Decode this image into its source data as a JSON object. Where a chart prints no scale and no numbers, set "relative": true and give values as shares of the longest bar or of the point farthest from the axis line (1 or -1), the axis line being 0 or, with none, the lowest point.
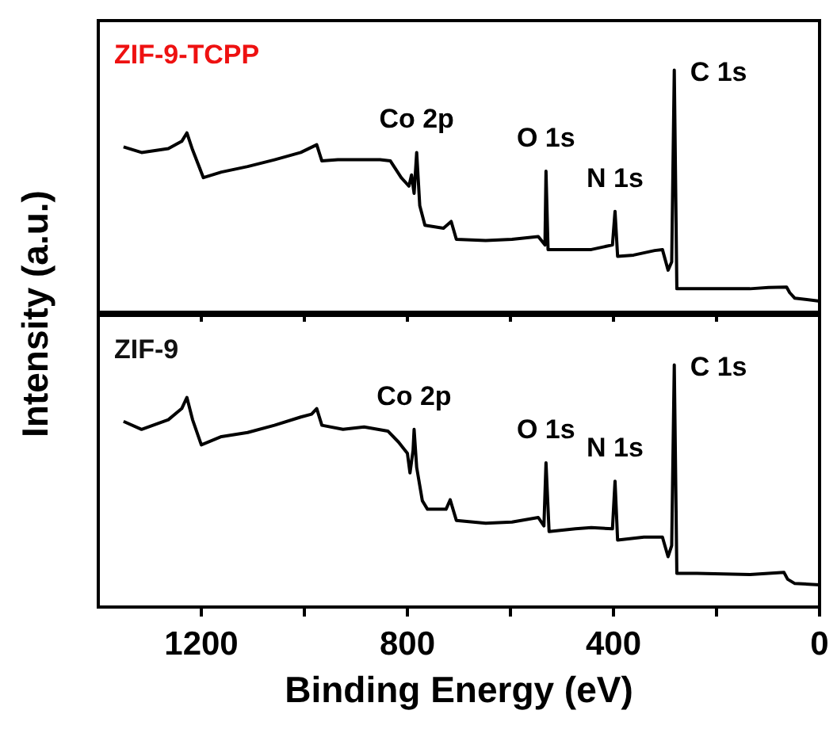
{
  "chart_data": [
    {
      "type": "line",
      "title": "ZIF-9-TCPP",
      "ylabel": "Intensity (a.u.)",
      "relative": true,
      "tick_labels": false,
      "grid": false,
      "marker": "none",
      "line_style": "solid",
      "xlim": [
        1400,
        0
      ],
      "xticks": [
        1200,
        {
          "value": 1000,
          "label": null
        },
        800,
        {
          "value": 600,
          "label": null
        },
        400,
        {
          "value": 200,
          "label": null
        },
        0
      ],
      "x": [
        1351,
        1316,
        1264,
        1238,
        1228,
        1217,
        1196,
        1161,
        1110,
        1058,
        1007,
        976,
        966,
        935,
        905,
        853,
        833,
        812,
        797,
        792,
        787,
        782,
        776,
        766,
        730,
        715,
        705,
        648,
        597,
        546,
        533,
        531,
        527,
        484,
        443,
        402,
        397,
        392,
        361,
        320,
        305,
        294,
        287,
        282,
        277,
        238,
        135,
        99,
        64,
        58,
        48,
        0
      ],
      "series": [
        {
          "color": "#000000",
          "values": [
            0.683,
            0.66,
            0.676,
            0.706,
            0.741,
            0.671,
            0.556,
            0.579,
            0.602,
            0.63,
            0.66,
            0.692,
            0.625,
            0.63,
            0.63,
            0.63,
            0.625,
            0.556,
            0.521,
            0.567,
            0.491,
            0.66,
            0.44,
            0.359,
            0.347,
            0.375,
            0.301,
            0.296,
            0.301,
            0.313,
            0.278,
            0.583,
            0.259,
            0.259,
            0.259,
            0.278,
            0.417,
            0.231,
            0.236,
            0.255,
            0.259,
            0.174,
            0.208,
            1.0,
            0.097,
            0.097,
            0.097,
            0.102,
            0.104,
            0.081,
            0.058,
            0.046
          ]
        }
      ],
      "annotations": [
        {
          "text": "Co 2p",
          "x": 782,
          "y": 0.66
        },
        {
          "text": "O 1s",
          "x": 531,
          "y": 0.583
        },
        {
          "text": "N 1s",
          "x": 397,
          "y": 0.417
        },
        {
          "text": "C 1s",
          "x": 282,
          "y": 1.0
        }
      ]
    },
    {
      "type": "line",
      "title": "ZIF-9",
      "xlabel": "Binding Energy (eV)",
      "relative": true,
      "tick_labels": "x",
      "grid": false,
      "marker": "none",
      "line_style": "solid",
      "xlim": [
        1400,
        0
      ],
      "xticks": [
        1200,
        {
          "value": 1000,
          "label": null
        },
        800,
        {
          "value": 600,
          "label": null
        },
        400,
        {
          "value": 200,
          "label": null
        },
        0
      ],
      "x": [
        1351,
        1316,
        1264,
        1238,
        1228,
        1217,
        1200,
        1161,
        1110,
        1058,
        1007,
        986,
        976,
        966,
        925,
        884,
        838,
        817,
        800,
        795,
        789,
        787,
        782,
        771,
        761,
        725,
        717,
        705,
        648,
        597,
        546,
        535,
        531,
        525,
        474,
        443,
        402,
        397,
        392,
        341,
        305,
        294,
        287,
        282,
        277,
        238,
        135,
        69,
        62,
        48,
        0
      ],
      "series": [
        {
          "color": "#000000",
          "values": [
            0.767,
            0.734,
            0.774,
            0.82,
            0.866,
            0.774,
            0.67,
            0.704,
            0.721,
            0.751,
            0.785,
            0.797,
            0.82,
            0.751,
            0.734,
            0.744,
            0.727,
            0.681,
            0.635,
            0.554,
            0.647,
            0.734,
            0.577,
            0.439,
            0.404,
            0.404,
            0.443,
            0.358,
            0.346,
            0.351,
            0.37,
            0.335,
            0.596,
            0.312,
            0.323,
            0.328,
            0.323,
            0.52,
            0.277,
            0.289,
            0.289,
            0.208,
            0.254,
            1.0,
            0.139,
            0.139,
            0.134,
            0.143,
            0.115,
            0.097,
            0.092
          ]
        }
      ],
      "annotations": [
        {
          "text": "Co 2p",
          "x": 787,
          "y": 0.734
        },
        {
          "text": "O 1s",
          "x": 531,
          "y": 0.596
        },
        {
          "text": "N 1s",
          "x": 397,
          "y": 0.52
        },
        {
          "text": "C 1s",
          "x": 282,
          "y": 1.0
        }
      ]
    }
  ]
}
